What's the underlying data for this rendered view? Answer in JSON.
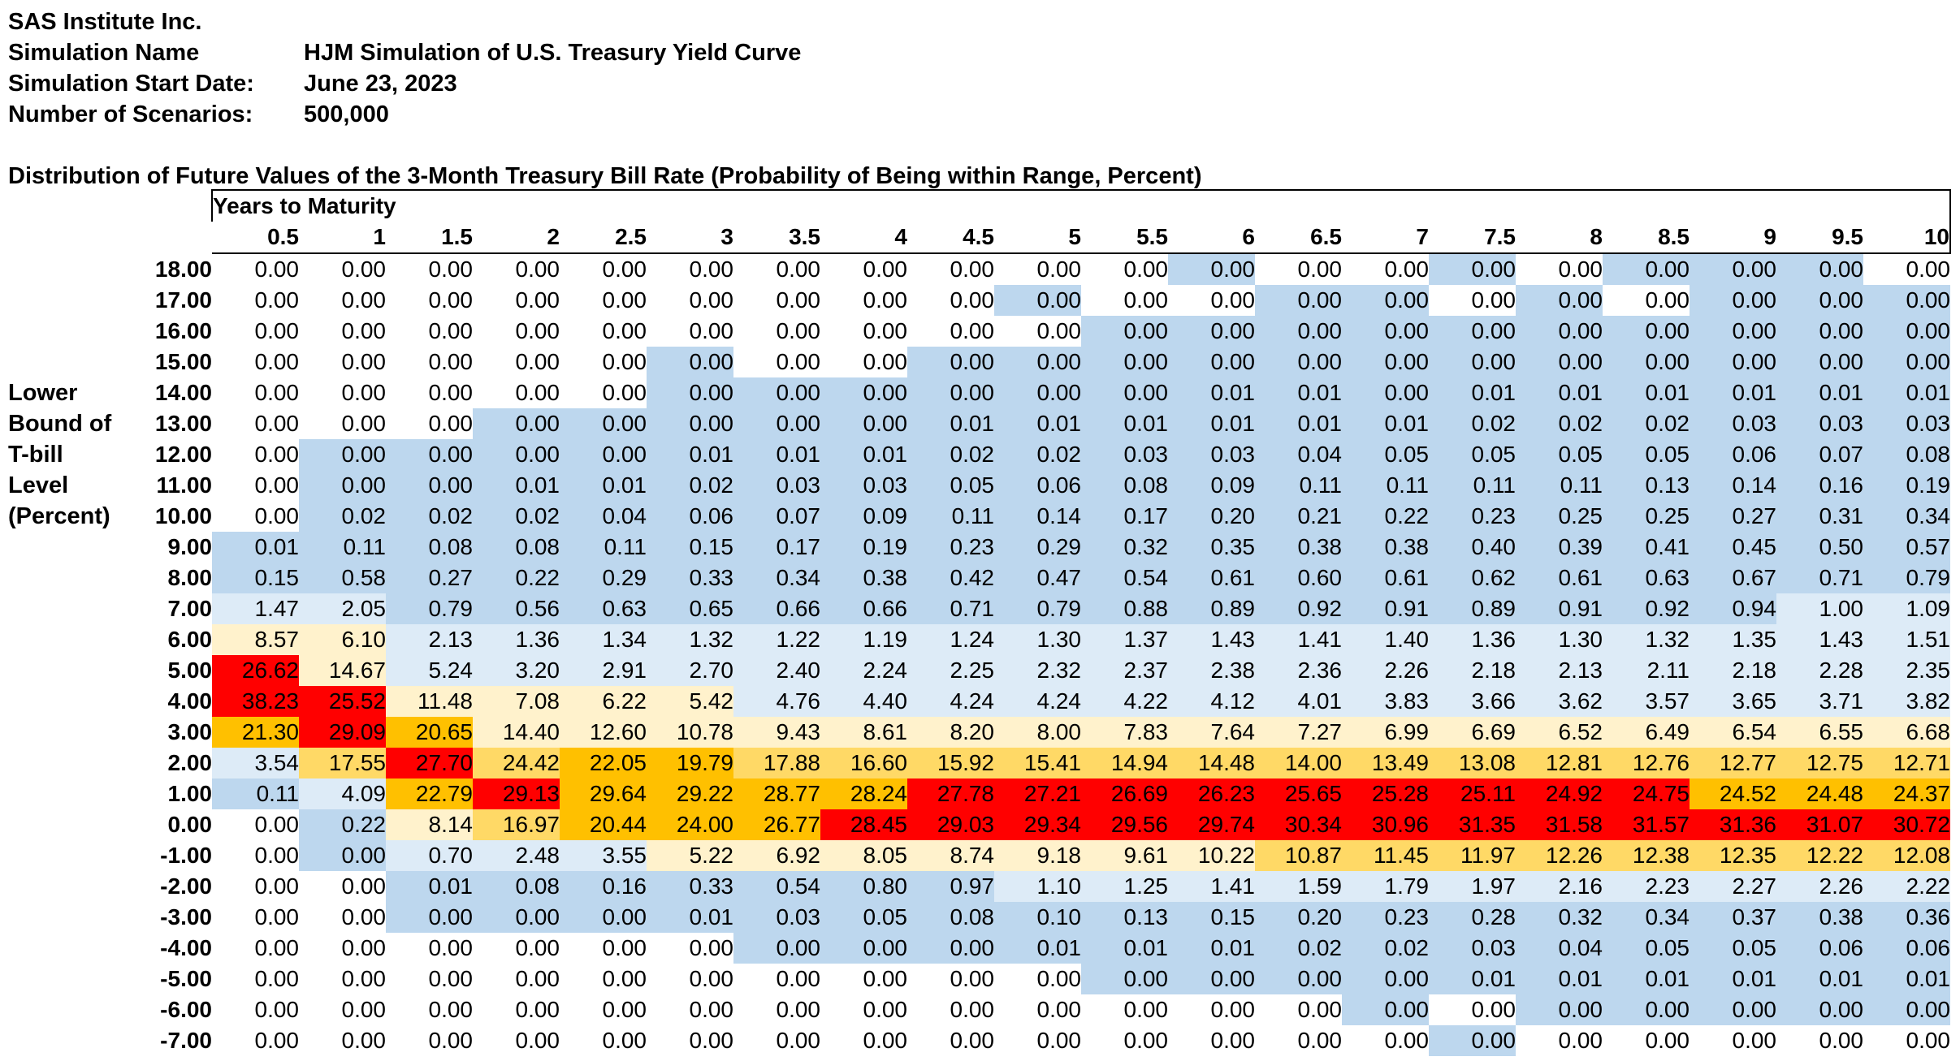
{
  "header": {
    "company": "SAS Institute Inc.",
    "fields": [
      {
        "label": "Simulation Name",
        "value": "HJM Simulation of U.S. Treasury Yield Curve"
      },
      {
        "label": "Simulation Start Date:",
        "value": "June 23, 2023"
      },
      {
        "label": "Number of Scenarios:",
        "value": "500,000"
      }
    ]
  },
  "table_title": "Distribution of Future Values of the 3-Month Treasury Bill Rate (Probability of Being within Range, Percent)",
  "row_axis_label": [
    "Lower",
    "Bound of",
    "T-bill",
    "Level",
    "(Percent)"
  ],
  "col_axis_label": "Years to Maturity",
  "columns": [
    "0.5",
    "1",
    "1.5",
    "2",
    "2.5",
    "3",
    "3.5",
    "4",
    "4.5",
    "5",
    "5.5",
    "6",
    "6.5",
    "7",
    "7.5",
    "8",
    "8.5",
    "9",
    "9.5",
    "10"
  ],
  "colors": {
    "white": "#ffffff",
    "lightblue": "#ddebf7",
    "blue": "#bdd7ee",
    "cream": "#fff2cc",
    "yellow": "#ffd966",
    "orange": "#ffc000",
    "red": "#ff0000"
  },
  "rows": [
    {
      "label": "18.00",
      "values": [
        "0.00",
        "0.00",
        "0.00",
        "0.00",
        "0.00",
        "0.00",
        "0.00",
        "0.00",
        "0.00",
        "0.00",
        "0.00",
        "0.00",
        "0.00",
        "0.00",
        "0.00",
        "0.00",
        "0.00",
        "0.00",
        "0.00",
        "0.00"
      ],
      "colors": "wwwwwwwwwwwbwwbwbbbw"
    },
    {
      "label": "17.00",
      "values": [
        "0.00",
        "0.00",
        "0.00",
        "0.00",
        "0.00",
        "0.00",
        "0.00",
        "0.00",
        "0.00",
        "0.00",
        "0.00",
        "0.00",
        "0.00",
        "0.00",
        "0.00",
        "0.00",
        "0.00",
        "0.00",
        "0.00",
        "0.00"
      ],
      "colors": "wwwwwwwwwbwwbbwbwbbb"
    },
    {
      "label": "16.00",
      "values": [
        "0.00",
        "0.00",
        "0.00",
        "0.00",
        "0.00",
        "0.00",
        "0.00",
        "0.00",
        "0.00",
        "0.00",
        "0.00",
        "0.00",
        "0.00",
        "0.00",
        "0.00",
        "0.00",
        "0.00",
        "0.00",
        "0.00",
        "0.00"
      ],
      "colors": "wwwwwwwwwwbbbbbbbbbb"
    },
    {
      "label": "15.00",
      "values": [
        "0.00",
        "0.00",
        "0.00",
        "0.00",
        "0.00",
        "0.00",
        "0.00",
        "0.00",
        "0.00",
        "0.00",
        "0.00",
        "0.00",
        "0.00",
        "0.00",
        "0.00",
        "0.00",
        "0.00",
        "0.00",
        "0.00",
        "0.00"
      ],
      "colors": "wwwwwbwwbbbbbbbbbbbb"
    },
    {
      "label": "14.00",
      "values": [
        "0.00",
        "0.00",
        "0.00",
        "0.00",
        "0.00",
        "0.00",
        "0.00",
        "0.00",
        "0.00",
        "0.00",
        "0.00",
        "0.01",
        "0.01",
        "0.00",
        "0.01",
        "0.01",
        "0.01",
        "0.01",
        "0.01",
        "0.01"
      ],
      "colors": "wwwwwbbbbbbbbbbbbbbb"
    },
    {
      "label": "13.00",
      "values": [
        "0.00",
        "0.00",
        "0.00",
        "0.00",
        "0.00",
        "0.00",
        "0.00",
        "0.00",
        "0.01",
        "0.01",
        "0.01",
        "0.01",
        "0.01",
        "0.01",
        "0.02",
        "0.02",
        "0.02",
        "0.03",
        "0.03",
        "0.03"
      ],
      "colors": "wwwbbbbbbbbbbbbbbbbb"
    },
    {
      "label": "12.00",
      "values": [
        "0.00",
        "0.00",
        "0.00",
        "0.00",
        "0.00",
        "0.01",
        "0.01",
        "0.01",
        "0.02",
        "0.02",
        "0.03",
        "0.03",
        "0.04",
        "0.05",
        "0.05",
        "0.05",
        "0.05",
        "0.06",
        "0.07",
        "0.08"
      ],
      "colors": "wbbbbbbbbbbbbbbbbbbb"
    },
    {
      "label": "11.00",
      "values": [
        "0.00",
        "0.00",
        "0.00",
        "0.01",
        "0.01",
        "0.02",
        "0.03",
        "0.03",
        "0.05",
        "0.06",
        "0.08",
        "0.09",
        "0.11",
        "0.11",
        "0.11",
        "0.11",
        "0.13",
        "0.14",
        "0.16",
        "0.19"
      ],
      "colors": "wbbbbbbbbbbbbbbbbbbb"
    },
    {
      "label": "10.00",
      "values": [
        "0.00",
        "0.02",
        "0.02",
        "0.02",
        "0.04",
        "0.06",
        "0.07",
        "0.09",
        "0.11",
        "0.14",
        "0.17",
        "0.20",
        "0.21",
        "0.22",
        "0.23",
        "0.25",
        "0.25",
        "0.27",
        "0.31",
        "0.34"
      ],
      "colors": "wbbbbbbbbbbbbbbbbbbb"
    },
    {
      "label": "9.00",
      "values": [
        "0.01",
        "0.11",
        "0.08",
        "0.08",
        "0.11",
        "0.15",
        "0.17",
        "0.19",
        "0.23",
        "0.29",
        "0.32",
        "0.35",
        "0.38",
        "0.38",
        "0.40",
        "0.39",
        "0.41",
        "0.45",
        "0.50",
        "0.57"
      ],
      "colors": "bbbbbbbbbbbbbbbbbbbb"
    },
    {
      "label": "8.00",
      "values": [
        "0.15",
        "0.58",
        "0.27",
        "0.22",
        "0.29",
        "0.33",
        "0.34",
        "0.38",
        "0.42",
        "0.47",
        "0.54",
        "0.61",
        "0.60",
        "0.61",
        "0.62",
        "0.61",
        "0.63",
        "0.67",
        "0.71",
        "0.79"
      ],
      "colors": "bbbbbbbbbbbbbbbbbbbb"
    },
    {
      "label": "7.00",
      "values": [
        "1.47",
        "2.05",
        "0.79",
        "0.56",
        "0.63",
        "0.65",
        "0.66",
        "0.66",
        "0.71",
        "0.79",
        "0.88",
        "0.89",
        "0.92",
        "0.91",
        "0.89",
        "0.91",
        "0.92",
        "0.94",
        "1.00",
        "1.09"
      ],
      "colors": "llbbbbbbbbbbbbbbbbll"
    },
    {
      "label": "6.00",
      "values": [
        "8.57",
        "6.10",
        "2.13",
        "1.36",
        "1.34",
        "1.32",
        "1.22",
        "1.19",
        "1.24",
        "1.30",
        "1.37",
        "1.43",
        "1.41",
        "1.40",
        "1.36",
        "1.30",
        "1.32",
        "1.35",
        "1.43",
        "1.51"
      ],
      "colors": "cclllllllllllllllll l"
    },
    {
      "label": "5.00",
      "values": [
        "26.62",
        "14.67",
        "5.24",
        "3.20",
        "2.91",
        "2.70",
        "2.40",
        "2.24",
        "2.25",
        "2.32",
        "2.37",
        "2.38",
        "2.36",
        "2.26",
        "2.18",
        "2.13",
        "2.11",
        "2.18",
        "2.28",
        "2.35"
      ],
      "colors": "rclllllllllllllllllll"
    },
    {
      "label": "4.00",
      "values": [
        "38.23",
        "25.52",
        "11.48",
        "7.08",
        "6.22",
        "5.42",
        "4.76",
        "4.40",
        "4.24",
        "4.24",
        "4.22",
        "4.12",
        "4.01",
        "3.83",
        "3.66",
        "3.62",
        "3.57",
        "3.65",
        "3.71",
        "3.82"
      ],
      "colors": "rrcccclllllllllllllll"
    },
    {
      "label": "3.00",
      "values": [
        "21.30",
        "29.09",
        "20.65",
        "14.40",
        "12.60",
        "10.78",
        "9.43",
        "8.61",
        "8.20",
        "8.00",
        "7.83",
        "7.64",
        "7.27",
        "6.99",
        "6.69",
        "6.52",
        "6.49",
        "6.54",
        "6.55",
        "6.68"
      ],
      "colors": "oroccccccccccccccccc"
    },
    {
      "label": "2.00",
      "values": [
        "3.54",
        "17.55",
        "27.70",
        "24.42",
        "22.05",
        "19.79",
        "17.88",
        "16.60",
        "15.92",
        "15.41",
        "14.94",
        "14.48",
        "14.00",
        "13.49",
        "13.08",
        "12.81",
        "12.76",
        "12.77",
        "12.75",
        "12.71"
      ],
      "colors": "lyryooyyyyyyyyyyyyyy"
    },
    {
      "label": "1.00",
      "values": [
        "0.11",
        "4.09",
        "22.79",
        "29.13",
        "29.64",
        "29.22",
        "28.77",
        "28.24",
        "27.78",
        "27.21",
        "26.69",
        "26.23",
        "25.65",
        "25.28",
        "25.11",
        "24.92",
        "24.75",
        "24.52",
        "24.48",
        "24.37"
      ],
      "colors": "bloroooorrrrrrrrrooooo"
    },
    {
      "label": "0.00",
      "values": [
        "0.00",
        "0.22",
        "8.14",
        "16.97",
        "20.44",
        "24.00",
        "26.77",
        "28.45",
        "29.03",
        "29.34",
        "29.56",
        "29.74",
        "30.34",
        "30.96",
        "31.35",
        "31.58",
        "31.57",
        "31.36",
        "31.07",
        "30.72"
      ],
      "colors": "wbcyooorrrrrrrrrrrrr"
    },
    {
      "label": "-1.00",
      "values": [
        "0.00",
        "0.00",
        "0.70",
        "2.48",
        "3.55",
        "5.22",
        "6.92",
        "8.05",
        "8.74",
        "9.18",
        "9.61",
        "10.22",
        "10.87",
        "11.45",
        "11.97",
        "12.26",
        "12.38",
        "12.35",
        "12.22",
        "12.08"
      ],
      "colors": "wblllcccccccyyyyyyyy"
    },
    {
      "label": "-2.00",
      "values": [
        "0.00",
        "0.00",
        "0.01",
        "0.08",
        "0.16",
        "0.33",
        "0.54",
        "0.80",
        "0.97",
        "1.10",
        "1.25",
        "1.41",
        "1.59",
        "1.79",
        "1.97",
        "2.16",
        "2.23",
        "2.27",
        "2.26",
        "2.22"
      ],
      "colors": "wwbbbbbbbllllllllllll"
    },
    {
      "label": "-3.00",
      "values": [
        "0.00",
        "0.00",
        "0.00",
        "0.00",
        "0.00",
        "0.01",
        "0.03",
        "0.05",
        "0.08",
        "0.10",
        "0.13",
        "0.15",
        "0.20",
        "0.23",
        "0.28",
        "0.32",
        "0.34",
        "0.37",
        "0.38",
        "0.36"
      ],
      "colors": "wwbbbbbbbbbbbbbbbbbb"
    },
    {
      "label": "-4.00",
      "values": [
        "0.00",
        "0.00",
        "0.00",
        "0.00",
        "0.00",
        "0.00",
        "0.00",
        "0.00",
        "0.00",
        "0.01",
        "0.01",
        "0.01",
        "0.02",
        "0.02",
        "0.03",
        "0.04",
        "0.05",
        "0.05",
        "0.06",
        "0.06"
      ],
      "colors": "wwwwwwbbbbbbbbbbbbbb"
    },
    {
      "label": "-5.00",
      "values": [
        "0.00",
        "0.00",
        "0.00",
        "0.00",
        "0.00",
        "0.00",
        "0.00",
        "0.00",
        "0.00",
        "0.00",
        "0.00",
        "0.00",
        "0.00",
        "0.00",
        "0.01",
        "0.01",
        "0.01",
        "0.01",
        "0.01",
        "0.01"
      ],
      "colors": "wwwwwwwwwwbbbbbbbbbb"
    },
    {
      "label": "-6.00",
      "values": [
        "0.00",
        "0.00",
        "0.00",
        "0.00",
        "0.00",
        "0.00",
        "0.00",
        "0.00",
        "0.00",
        "0.00",
        "0.00",
        "0.00",
        "0.00",
        "0.00",
        "0.00",
        "0.00",
        "0.00",
        "0.00",
        "0.00",
        "0.00"
      ],
      "colors": "wwwwwwwwwwwwwbwbbbbb"
    },
    {
      "label": "-7.00",
      "values": [
        "0.00",
        "0.00",
        "0.00",
        "0.00",
        "0.00",
        "0.00",
        "0.00",
        "0.00",
        "0.00",
        "0.00",
        "0.00",
        "0.00",
        "0.00",
        "0.00",
        "0.00",
        "0.00",
        "0.00",
        "0.00",
        "0.00",
        "0.00"
      ],
      "colors": "wwwwwwwwwwwwwwbwwwww"
    }
  ]
}
